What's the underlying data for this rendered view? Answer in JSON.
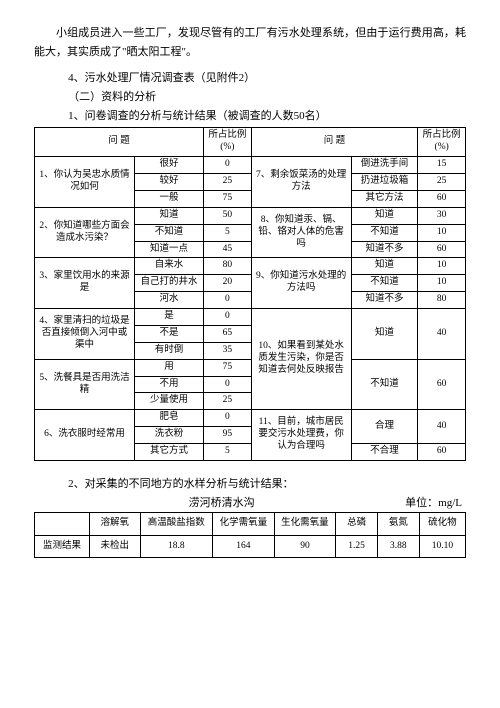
{
  "intro": {
    "para": "小组成员进入一些工厂，发现尽管有的工厂有污水处理系统，但由于运行费用高，耗能大，其实质成了\"晒太阳工程\"。",
    "line_4": "4、污水处理厂情况调查表（见附件2）",
    "section2": "（二）资料的分析",
    "line_1": "1、问卷调查的分析与统计结果（被调查的人数50名）"
  },
  "t1": {
    "head": {
      "ql": "问  题",
      "pl_top": "所占比例",
      "pl_bot": "(%)",
      "qr": "问  题",
      "pr_top": "所占比例",
      "pr_bot": "(%)"
    },
    "q1": {
      "title": "1、你认为吴忠水质情况如何",
      "r1a": "很好",
      "r1p": "0",
      "r2a": "较好",
      "r2p": "25",
      "r3a": "一般",
      "r3p": "75"
    },
    "q2": {
      "title": "2、你知道哪些方面会造成水污染？",
      "r1a": "知道",
      "r1p": "50",
      "r2a": "不知道",
      "r2p": "5",
      "r3a": "知道一点",
      "r3p": "45"
    },
    "q3": {
      "title": "3、家里饮用水的来源是",
      "r1a": "自来水",
      "r1p": "80",
      "r2a": "自己打的井水",
      "r2p": "20",
      "r3a": "河水",
      "r3p": "0"
    },
    "q4": {
      "title": "4、家里清扫的垃圾是否直接倾倒入河中或渠中",
      "r1a": "是",
      "r1p": "0",
      "r2a": "不是",
      "r2p": "65",
      "r3a": "有时倒",
      "r3p": "35"
    },
    "q5": {
      "title": "5、洗餐具是否用洗洁精",
      "r1a": "用",
      "r1p": "75",
      "r2a": "不用",
      "r2p": "0",
      "r3a": "少量使用",
      "r3p": "25"
    },
    "q6": {
      "title": "6、洗衣服时经常用",
      "r1a": "肥皂",
      "r1p": "0",
      "r2a": "洗衣粉",
      "r2p": "95",
      "r3a": "其它方式",
      "r3p": "5"
    },
    "q7": {
      "title": "7、剩余饭菜汤的处理方法",
      "r1a": "倒进洗手间",
      "r1p": "15",
      "r2a": "扔进垃圾箱",
      "r2p": "25",
      "r3a": "其它方法",
      "r3p": "60"
    },
    "q8": {
      "title": "8、你知道汞、镉、铅、铬对人体的危害吗",
      "r1a": "知道",
      "r1p": "30",
      "r2a": "不知道",
      "r2p": "10",
      "r3a": "知道不多",
      "r3p": "60"
    },
    "q9": {
      "title": "9、你知道污水处理的方法吗",
      "r1a": "知道",
      "r1p": "10",
      "r2a": "不知道",
      "r2p": "10",
      "r3a": "知道不多",
      "r3p": "80"
    },
    "q10": {
      "title": "10、如果看到某处水质发生污染，你是否知道去何处反映报告",
      "r1a": "知道",
      "r1p": "40",
      "r2a": "不知道",
      "r2p": "60"
    },
    "q11": {
      "title": "11、目前，城市居民要交污水处理费，你认为合理吗",
      "r1a": "合理",
      "r1p": "40",
      "r2a": "不合理",
      "r2p": "60"
    }
  },
  "t2": {
    "line": "2、对采集的不同地方的水样分析与统计结果：",
    "title": "涝河桥清水沟",
    "unit": "单位：mg/L",
    "head": {
      "lbl": "",
      "c1": "溶解氧",
      "c2": "高温酸盐指数",
      "c3": "化学需氧量",
      "c4": "生化需氧量",
      "c5": "总磷",
      "c6": "氨氮",
      "c7": "硫化物"
    },
    "row": {
      "lbl": "监测结果",
      "c1": "未检出",
      "c2": "18.8",
      "c3": "164",
      "c4": "90",
      "c5": "1.25",
      "c6": "3.88",
      "c7": "10.10"
    }
  }
}
